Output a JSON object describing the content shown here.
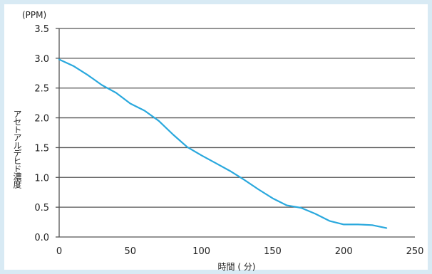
{
  "chart_data": {
    "type": "line",
    "title": "",
    "xlabel": "時間 ( 分)",
    "ylabel": "アセトアルデヒド濃度",
    "y_unit": "(PPM)",
    "xlim": [
      0,
      250
    ],
    "ylim": [
      0,
      3.5
    ],
    "x_ticks": [
      0,
      50,
      100,
      150,
      200,
      250
    ],
    "y_ticks": [
      0.0,
      0.5,
      1.0,
      1.5,
      2.0,
      2.5,
      3.0,
      3.5
    ],
    "x_tick_labels": [
      "0",
      "50",
      "100",
      "150",
      "200",
      "250"
    ],
    "y_tick_labels": [
      "0.0",
      "0.5",
      "1.0",
      "1.5",
      "2.0",
      "2.5",
      "3.0",
      "3.5"
    ],
    "grid": "horizontal",
    "line_color": "#29a8dd",
    "grid_color": "#555555",
    "series": [
      {
        "x": [
          0,
          10,
          20,
          30,
          40,
          50,
          60,
          70,
          80,
          90,
          100,
          110,
          120,
          130,
          140,
          150,
          160,
          170,
          180,
          190,
          200,
          210,
          220,
          230
        ],
        "y": [
          2.98,
          2.87,
          2.72,
          2.55,
          2.42,
          2.24,
          2.12,
          1.95,
          1.72,
          1.51,
          1.37,
          1.24,
          1.11,
          0.96,
          0.8,
          0.65,
          0.53,
          0.49,
          0.39,
          0.27,
          0.21,
          0.21,
          0.2,
          0.15
        ]
      }
    ]
  }
}
